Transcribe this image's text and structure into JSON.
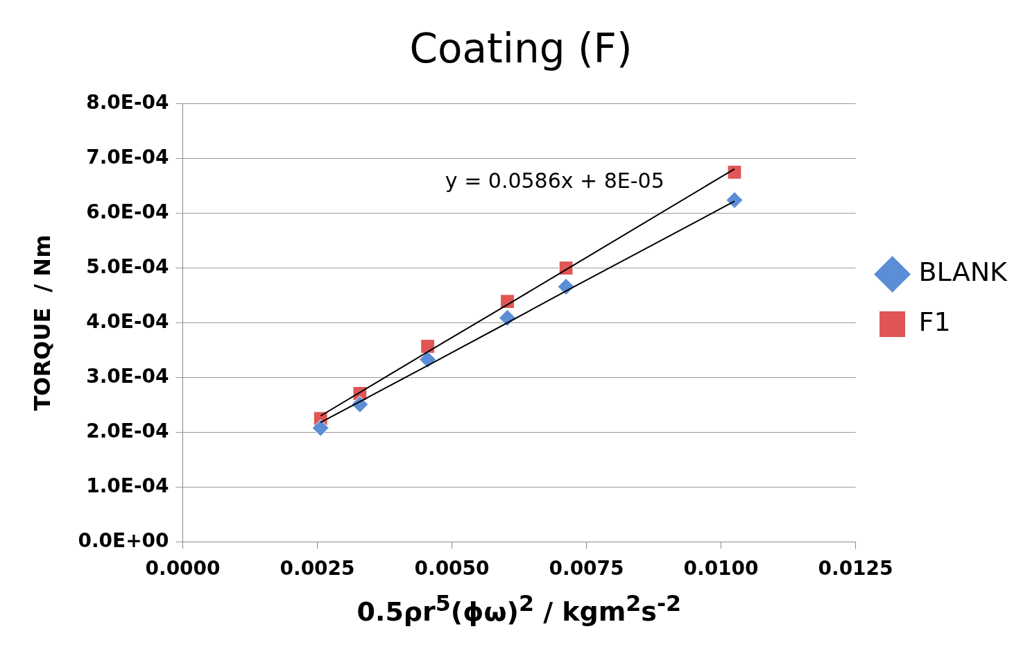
{
  "chart_data": {
    "type": "scatter",
    "title": "Coating (F)",
    "xlabel": "0.5ρr$^{5}$(ϕω)$^{2}$  / kgm$^{2}$s$^{-2}$",
    "ylabel": "TORQUE  / Nm",
    "x": [
      0.00256,
      0.00329,
      0.00455,
      0.00603,
      0.00712,
      0.01025
    ],
    "series": [
      {
        "name": "BLANK",
        "color": "#5b8ed6",
        "marker": "diamond",
        "values": [
          0.000208,
          0.000251,
          0.000333,
          0.000409,
          0.000466,
          0.000624
        ]
      },
      {
        "name": "F1",
        "color": "#e05555",
        "marker": "square",
        "values": [
          0.000225,
          0.000271,
          0.000357,
          0.000439,
          0.0005,
          0.000675
        ]
      },
      {
        "type": "line",
        "color": "#000000",
        "marker": "none",
        "values": [
          0.000218,
          0.000256,
          0.000322,
          0.0004,
          0.000458,
          0.000622
        ]
      },
      {
        "type": "line",
        "color": "#000000",
        "marker": "none",
        "values": [
          0.00023,
          0.000273,
          0.000347,
          0.000433,
          0.000497,
          0.000681
        ]
      }
    ],
    "annotations": [
      "y = 0.0586x + 8E-05"
    ],
    "xlim": [
      0,
      0.0125
    ],
    "xticks": [
      {
        "value": 0,
        "label": "0.0000"
      },
      {
        "value": 0.0025,
        "label": "0.0025"
      },
      {
        "value": 0.005,
        "label": "0.0050"
      },
      {
        "value": 0.0075,
        "label": "0.0075"
      },
      {
        "value": 0.01,
        "label": "0.0100"
      },
      {
        "value": 0.0125,
        "label": "0.0125"
      }
    ],
    "ylim": [
      0,
      0.0008
    ],
    "yticks": [
      {
        "value": 0,
        "label": "0.0E+00"
      },
      {
        "value": 0.0001,
        "label": "1.0E-04"
      },
      {
        "value": 0.0002,
        "label": "2.0E-04"
      },
      {
        "value": 0.0003,
        "label": "3.0E-04"
      },
      {
        "value": 0.0004,
        "label": "4.0E-04"
      },
      {
        "value": 0.0005,
        "label": "5.0E-04"
      },
      {
        "value": 0.0006,
        "label": "6.0E-04"
      },
      {
        "value": 0.0007,
        "label": "7.0E-04"
      },
      {
        "value": 0.0008,
        "label": "8.0E-04"
      }
    ],
    "grid": "y",
    "legend": "right"
  }
}
